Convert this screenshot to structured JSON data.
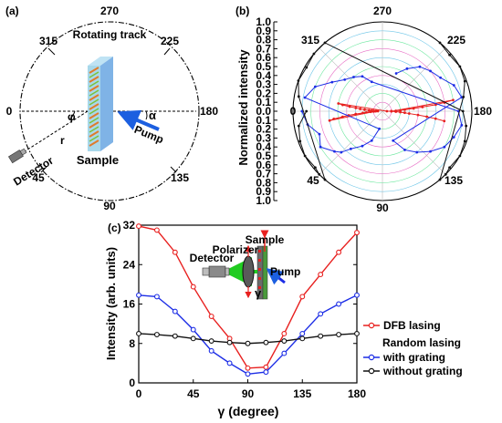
{
  "panel_a": {
    "label": "(a)",
    "track_label": "Rotating track",
    "angles": [
      "270",
      "315",
      "225",
      "0",
      "180",
      "45",
      "135",
      "90"
    ],
    "pump_label": "Pump",
    "alpha_label": "α",
    "phi_label": "φ",
    "r_label": "r",
    "detector_label": "Detector",
    "sample_label": "Sample"
  },
  "panel_b": {
    "label": "(b)",
    "ylabel": "Normalized intensity",
    "angles": [
      "270",
      "315",
      "225",
      "0",
      "180",
      "45",
      "135",
      "90"
    ]
  },
  "panel_c": {
    "label": "(c)",
    "legend": {
      "dfb": "DFB lasing",
      "random_title": "Random lasing",
      "with_grating": "with grating",
      "without_grating": "without grating"
    },
    "inset": {
      "sample": "Sample",
      "polarizer": "Polarizer",
      "detector": "Detector",
      "pump": "Pump",
      "gamma": "γ"
    }
  },
  "chart_data": [
    {
      "type": "scatter",
      "panel": "b",
      "polar": true,
      "ylabel": "Normalized intensity",
      "r_ticks": [
        "1.0",
        "0.9",
        "0.8",
        "0.7",
        "0.6",
        "0.5",
        "0.4",
        "0.3",
        "0.2",
        "0.1",
        "0.0",
        "0.1",
        "0.2",
        "0.3",
        "0.4",
        "0.5",
        "0.6",
        "0.7",
        "0.8",
        "0.9",
        "1.0"
      ],
      "rlim": [
        0,
        1
      ],
      "angle_labels": [
        "270",
        "315",
        "225",
        "0",
        "180",
        "45",
        "135",
        "90"
      ],
      "series": [
        {
          "color": "#e8201f",
          "points": [
            [
              0,
              0.05
            ],
            [
              1,
              0.08
            ],
            [
              2,
              0.1
            ],
            [
              3,
              0.13
            ],
            [
              4,
              0.18
            ],
            [
              5,
              0.22
            ],
            [
              6,
              0.3
            ],
            [
              7,
              0.38
            ],
            [
              8,
              0.45
            ],
            [
              9,
              0.55
            ],
            [
              10,
              0.6
            ],
            [
              -1,
              0.07
            ],
            [
              -2,
              0.1
            ],
            [
              -3,
              0.12
            ],
            [
              -4,
              0.15
            ],
            [
              -5,
              0.2
            ],
            [
              -6,
              0.25
            ],
            [
              -7,
              0.3
            ],
            [
              -8,
              0.37
            ],
            [
              -9,
              0.45
            ],
            [
              -10,
              0.5
            ],
            [
              180,
              0.05
            ],
            [
              181,
              0.1
            ],
            [
              182,
              0.15
            ],
            [
              183,
              0.2
            ],
            [
              184,
              0.25
            ],
            [
              185,
              0.35
            ],
            [
              186,
              0.45
            ],
            [
              187,
              0.6
            ],
            [
              188,
              0.7
            ],
            [
              189,
              0.8
            ],
            [
              179,
              0.1
            ],
            [
              178,
              0.15
            ],
            [
              177,
              0.2
            ],
            [
              176,
              0.25
            ],
            [
              175,
              0.3
            ],
            [
              174,
              0.4
            ],
            [
              173,
              0.5
            ],
            [
              172,
              0.6
            ],
            [
              171,
              0.7
            ]
          ]
        },
        {
          "color": "#1c2de6",
          "points": [
            [
              0,
              0.9
            ],
            [
              10,
              0.85
            ],
            [
              20,
              0.75
            ],
            [
              30,
              0.8
            ],
            [
              40,
              0.7
            ],
            [
              45,
              0.65
            ],
            [
              50,
              0.55
            ],
            [
              60,
              0.45
            ],
            [
              70,
              0.35
            ],
            [
              80,
              0.2
            ],
            [
              -10,
              0.88
            ],
            [
              -20,
              0.8
            ],
            [
              -30,
              0.65
            ],
            [
              -40,
              0.55
            ],
            [
              -50,
              0.5
            ],
            [
              -60,
              0.45
            ],
            [
              -70,
              0.35
            ],
            [
              180,
              0.85
            ],
            [
              170,
              0.9
            ],
            [
              160,
              0.85
            ],
            [
              150,
              0.8
            ],
            [
              140,
              0.7
            ],
            [
              130,
              0.6
            ],
            [
              120,
              0.5
            ],
            [
              110,
              0.35
            ],
            [
              190,
              0.9
            ],
            [
              200,
              0.85
            ],
            [
              210,
              0.75
            ],
            [
              220,
              0.7
            ],
            [
              230,
              0.65
            ],
            [
              240,
              0.55
            ],
            [
              250,
              0.45
            ]
          ]
        },
        {
          "color": "#111111",
          "points": [
            [
              0,
              0.85
            ],
            [
              10,
              0.95
            ],
            [
              20,
              0.98
            ],
            [
              30,
              1.0
            ],
            [
              40,
              0.98
            ],
            [
              45,
              1.0
            ],
            [
              50,
              1.0
            ],
            [
              -10,
              0.95
            ],
            [
              -20,
              1.0
            ],
            [
              -30,
              0.98
            ],
            [
              -40,
              1.0
            ],
            [
              -50,
              1.0
            ],
            [
              180,
              0.9
            ],
            [
              170,
              0.95
            ],
            [
              160,
              0.98
            ],
            [
              150,
              1.0
            ],
            [
              140,
              0.98
            ],
            [
              135,
              1.0
            ],
            [
              130,
              1.0
            ],
            [
              190,
              0.92
            ],
            [
              200,
              0.98
            ],
            [
              210,
              1.0
            ],
            [
              220,
              0.98
            ],
            [
              230,
              1.0
            ]
          ]
        }
      ]
    },
    {
      "type": "line",
      "panel": "c",
      "xlabel": "γ (degree)",
      "ylabel": "Intensity (arb. units)",
      "xlim": [
        0,
        180
      ],
      "ylim": [
        0,
        32
      ],
      "xticks": [
        0,
        45,
        90,
        135,
        180
      ],
      "yticks": [
        0,
        8,
        16,
        24,
        32
      ],
      "x": [
        0,
        15,
        30,
        45,
        60,
        75,
        90,
        105,
        120,
        135,
        150,
        165,
        180
      ],
      "series": [
        {
          "name": "DFB lasing",
          "color": "#e8201f",
          "marker": "circle",
          "values": [
            31.8,
            31.0,
            26.5,
            19.5,
            13.5,
            9.0,
            3.0,
            3.2,
            10.0,
            17.5,
            22.0,
            26.5,
            30.5
          ]
        },
        {
          "name": "Random lasing with grating",
          "color": "#1c2de6",
          "marker": "circle",
          "values": [
            17.8,
            17.5,
            14.5,
            10.8,
            6.5,
            4.0,
            1.8,
            2.2,
            6.0,
            10.0,
            14.0,
            16.0,
            17.8
          ]
        },
        {
          "name": "Random lasing without grating",
          "color": "#111111",
          "marker": "circle",
          "values": [
            10.0,
            9.8,
            9.5,
            9.0,
            8.5,
            8.2,
            8.0,
            8.2,
            8.5,
            9.0,
            9.5,
            9.8,
            10.0
          ]
        }
      ]
    }
  ]
}
